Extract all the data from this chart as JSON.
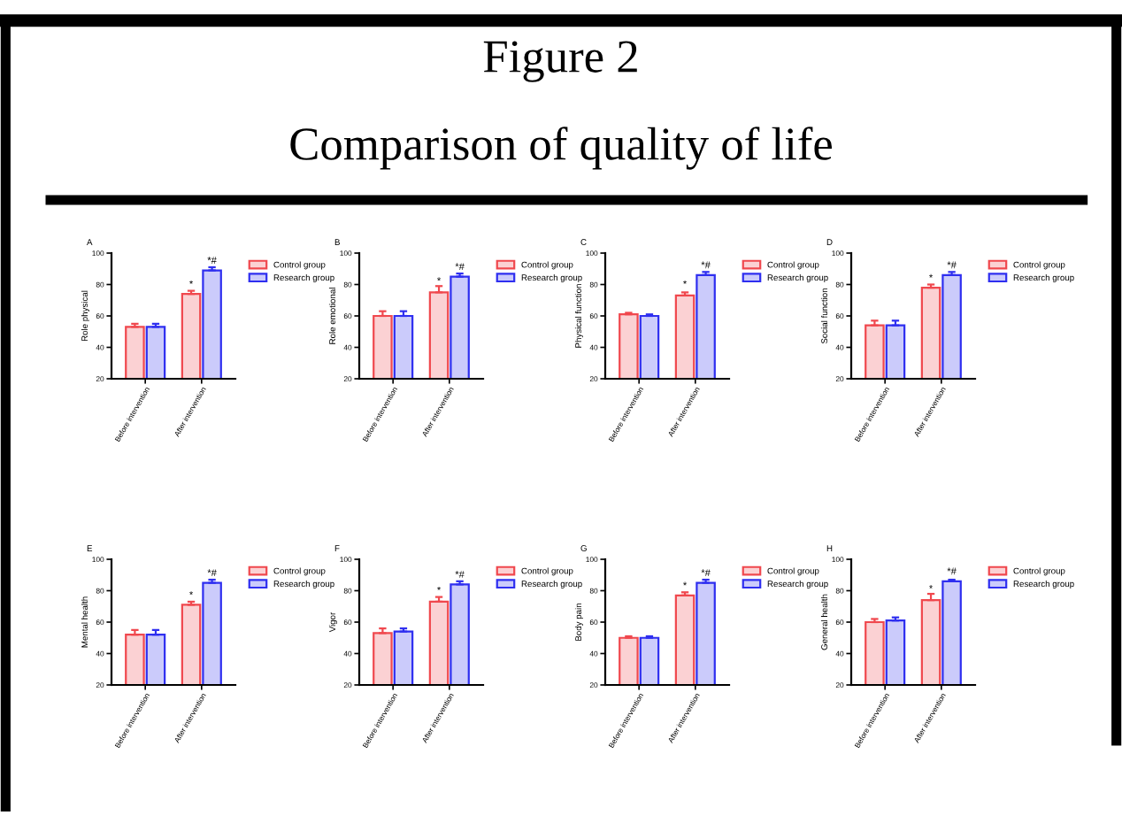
{
  "chart_data": [
    {
      "type": "other",
      "title": "Figure 2",
      "subtitle": "Comparison of quality of life"
    },
    {
      "type": "bar",
      "annotations": [
        "A",
        {
          "text": "*",
          "x": "After intervention",
          "y": 77
        },
        {
          "text": "*#",
          "x": "After intervention",
          "y": 92
        }
      ],
      "ylabel": "Role physical",
      "categories": [
        "Before intervention",
        "After intervention"
      ],
      "ylim": [
        20,
        100
      ],
      "yticks": [
        20,
        40,
        60,
        80,
        100
      ],
      "legend": "right",
      "series": [
        {
          "name": "Control group",
          "color": "#f0484e",
          "values": [
            53,
            74
          ],
          "errors": [
            2,
            2
          ]
        },
        {
          "name": "Research group",
          "color": "#2f2ff0",
          "values": [
            53,
            89
          ],
          "errors": [
            2,
            2
          ]
        }
      ]
    },
    {
      "type": "bar",
      "annotations": [
        "B",
        {
          "text": "*",
          "x": "After intervention",
          "y": 79
        },
        {
          "text": "*#",
          "x": "After intervention",
          "y": 88
        }
      ],
      "ylabel": "Role emotional",
      "categories": [
        "Before intervention",
        "After intervention"
      ],
      "ylim": [
        20,
        100
      ],
      "yticks": [
        20,
        40,
        60,
        80,
        100
      ],
      "legend": "right",
      "series": [
        {
          "name": "Control group",
          "color": "#f0484e",
          "values": [
            60,
            75
          ],
          "errors": [
            3,
            4
          ]
        },
        {
          "name": "Research group",
          "color": "#2f2ff0",
          "values": [
            60,
            85
          ],
          "errors": [
            3,
            2
          ]
        }
      ]
    },
    {
      "type": "bar",
      "annotations": [
        "C",
        {
          "text": "*",
          "x": "After intervention",
          "y": 77
        },
        {
          "text": "*#",
          "x": "After intervention",
          "y": 89
        }
      ],
      "ylabel": "Physical function",
      "categories": [
        "Before intervention",
        "After intervention"
      ],
      "ylim": [
        20,
        100
      ],
      "yticks": [
        20,
        40,
        60,
        80,
        100
      ],
      "legend": "right",
      "series": [
        {
          "name": "Control group",
          "color": "#f0484e",
          "values": [
            61,
            73
          ],
          "errors": [
            1,
            2
          ]
        },
        {
          "name": "Research group",
          "color": "#2f2ff0",
          "values": [
            60,
            86
          ],
          "errors": [
            1,
            2
          ]
        }
      ]
    },
    {
      "type": "bar",
      "annotations": [
        "D",
        {
          "text": "*",
          "x": "After intervention",
          "y": 81
        },
        {
          "text": "*#",
          "x": "After intervention",
          "y": 89
        }
      ],
      "ylabel": "Social function",
      "categories": [
        "Before intervention",
        "After intervention"
      ],
      "ylim": [
        20,
        100
      ],
      "yticks": [
        20,
        40,
        60,
        80,
        100
      ],
      "legend": "right",
      "series": [
        {
          "name": "Control group",
          "color": "#f0484e",
          "values": [
            54,
            78
          ],
          "errors": [
            3,
            2
          ]
        },
        {
          "name": "Research group",
          "color": "#2f2ff0",
          "values": [
            54,
            86
          ],
          "errors": [
            3,
            2
          ]
        }
      ]
    },
    {
      "type": "bar",
      "annotations": [
        "E",
        {
          "text": "*",
          "x": "After intervention",
          "y": 74
        },
        {
          "text": "*#",
          "x": "After intervention",
          "y": 88
        }
      ],
      "ylabel": "Mental health",
      "categories": [
        "Before intervention",
        "After intervention"
      ],
      "ylim": [
        20,
        100
      ],
      "yticks": [
        20,
        40,
        60,
        80,
        100
      ],
      "legend": "right",
      "series": [
        {
          "name": "Control group",
          "color": "#f0484e",
          "values": [
            52,
            71
          ],
          "errors": [
            3,
            2
          ]
        },
        {
          "name": "Research group",
          "color": "#2f2ff0",
          "values": [
            52,
            85
          ],
          "errors": [
            3,
            2
          ]
        }
      ]
    },
    {
      "type": "bar",
      "annotations": [
        "F",
        {
          "text": "*",
          "x": "After intervention",
          "y": 77
        },
        {
          "text": "*#",
          "x": "After intervention",
          "y": 87
        }
      ],
      "ylabel": "Vigor",
      "categories": [
        "Before intervention",
        "After intervention"
      ],
      "ylim": [
        20,
        100
      ],
      "yticks": [
        20,
        40,
        60,
        80,
        100
      ],
      "legend": "right",
      "series": [
        {
          "name": "Control group",
          "color": "#f0484e",
          "values": [
            53,
            73
          ],
          "errors": [
            3,
            3
          ]
        },
        {
          "name": "Research group",
          "color": "#2f2ff0",
          "values": [
            54,
            84
          ],
          "errors": [
            2,
            2
          ]
        }
      ]
    },
    {
      "type": "bar",
      "annotations": [
        "G",
        {
          "text": "*",
          "x": "After intervention",
          "y": 80
        },
        {
          "text": "*#",
          "x": "After intervention",
          "y": 88
        }
      ],
      "ylabel": "Body pain",
      "categories": [
        "Before intervention",
        "After intervention"
      ],
      "ylim": [
        20,
        100
      ],
      "yticks": [
        20,
        40,
        60,
        80,
        100
      ],
      "legend": "right",
      "series": [
        {
          "name": "Control group",
          "color": "#f0484e",
          "values": [
            50,
            77
          ],
          "errors": [
            1,
            2
          ]
        },
        {
          "name": "Research group",
          "color": "#2f2ff0",
          "values": [
            50,
            85
          ],
          "errors": [
            1,
            2
          ]
        }
      ]
    },
    {
      "type": "bar",
      "annotations": [
        "H",
        {
          "text": "*",
          "x": "After intervention",
          "y": 78
        },
        {
          "text": "*#",
          "x": "After intervention",
          "y": 89
        }
      ],
      "ylabel": "General health",
      "categories": [
        "Before intervention",
        "After intervention"
      ],
      "ylim": [
        20,
        100
      ],
      "yticks": [
        20,
        40,
        60,
        80,
        100
      ],
      "legend": "right",
      "series": [
        {
          "name": "Control group",
          "color": "#f0484e",
          "values": [
            60,
            74
          ],
          "errors": [
            2,
            4
          ]
        },
        {
          "name": "Research group",
          "color": "#2f2ff0",
          "values": [
            61,
            86
          ],
          "errors": [
            2,
            1
          ]
        }
      ]
    }
  ]
}
